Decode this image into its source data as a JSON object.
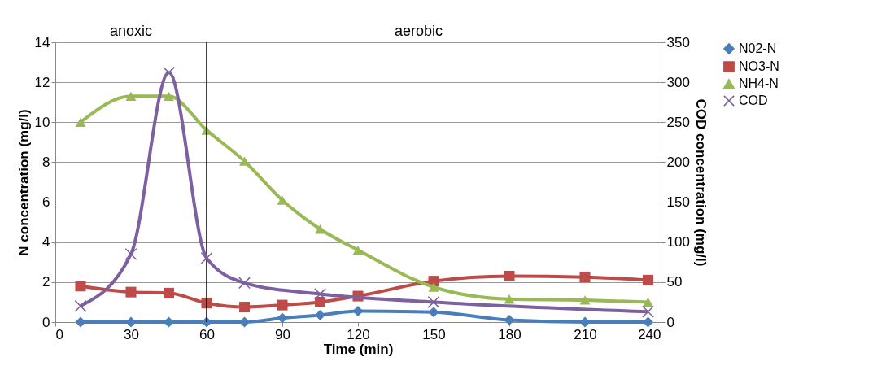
{
  "chart_data": {
    "type": "line",
    "xlabel": "Time (min)",
    "ylabel": "N concentration (mg/l)",
    "y2label": "COD concentration (mg/l)",
    "x": [
      10,
      30,
      45,
      60,
      75,
      90,
      105,
      120,
      150,
      180,
      210,
      235
    ],
    "series": [
      {
        "name": "N02-N",
        "color": "#4a7ebb",
        "marker": "diamond",
        "values": [
          0,
          0,
          0,
          0,
          0,
          0.2,
          0.35,
          0.55,
          0.5,
          0.1,
          0,
          0
        ]
      },
      {
        "name": "NO3-N",
        "color": "#be4b48",
        "marker": "square",
        "values": [
          1.8,
          1.5,
          1.45,
          0.95,
          0.75,
          0.85,
          1.0,
          1.3,
          2.05,
          2.3,
          2.25,
          2.1
        ]
      },
      {
        "name": "NH4-N",
        "color": "#98b954",
        "marker": "triangle",
        "values": [
          10,
          11.3,
          11.3,
          9.6,
          8.05,
          6.1,
          4.65,
          3.6,
          1.75,
          1.15,
          1.1,
          1.0
        ]
      },
      {
        "name": "COD",
        "color": "#7d60a0",
        "marker": "cross",
        "axis": "y2",
        "x": [
          10,
          30,
          45,
          60,
          75,
          105,
          150,
          235
        ],
        "values": [
          20,
          85,
          312,
          80,
          49,
          35,
          25,
          13
        ]
      }
    ],
    "xlim": [
      0,
      240
    ],
    "xticks": [
      0,
      30,
      60,
      90,
      120,
      150,
      180,
      210,
      240
    ],
    "ylim": [
      0,
      14
    ],
    "yticks": [
      0,
      2,
      4,
      6,
      8,
      10,
      12,
      14
    ],
    "y2lim": [
      0,
      350
    ],
    "y2ticks": [
      0,
      50,
      100,
      150,
      200,
      250,
      300,
      350
    ],
    "ref_lines": [
      {
        "axis": "x",
        "value": 60,
        "color": "#000000"
      }
    ],
    "annotations": [
      "anoxic",
      "aerobic"
    ],
    "grid": "y",
    "legend": "right",
    "line_style": "solid"
  }
}
